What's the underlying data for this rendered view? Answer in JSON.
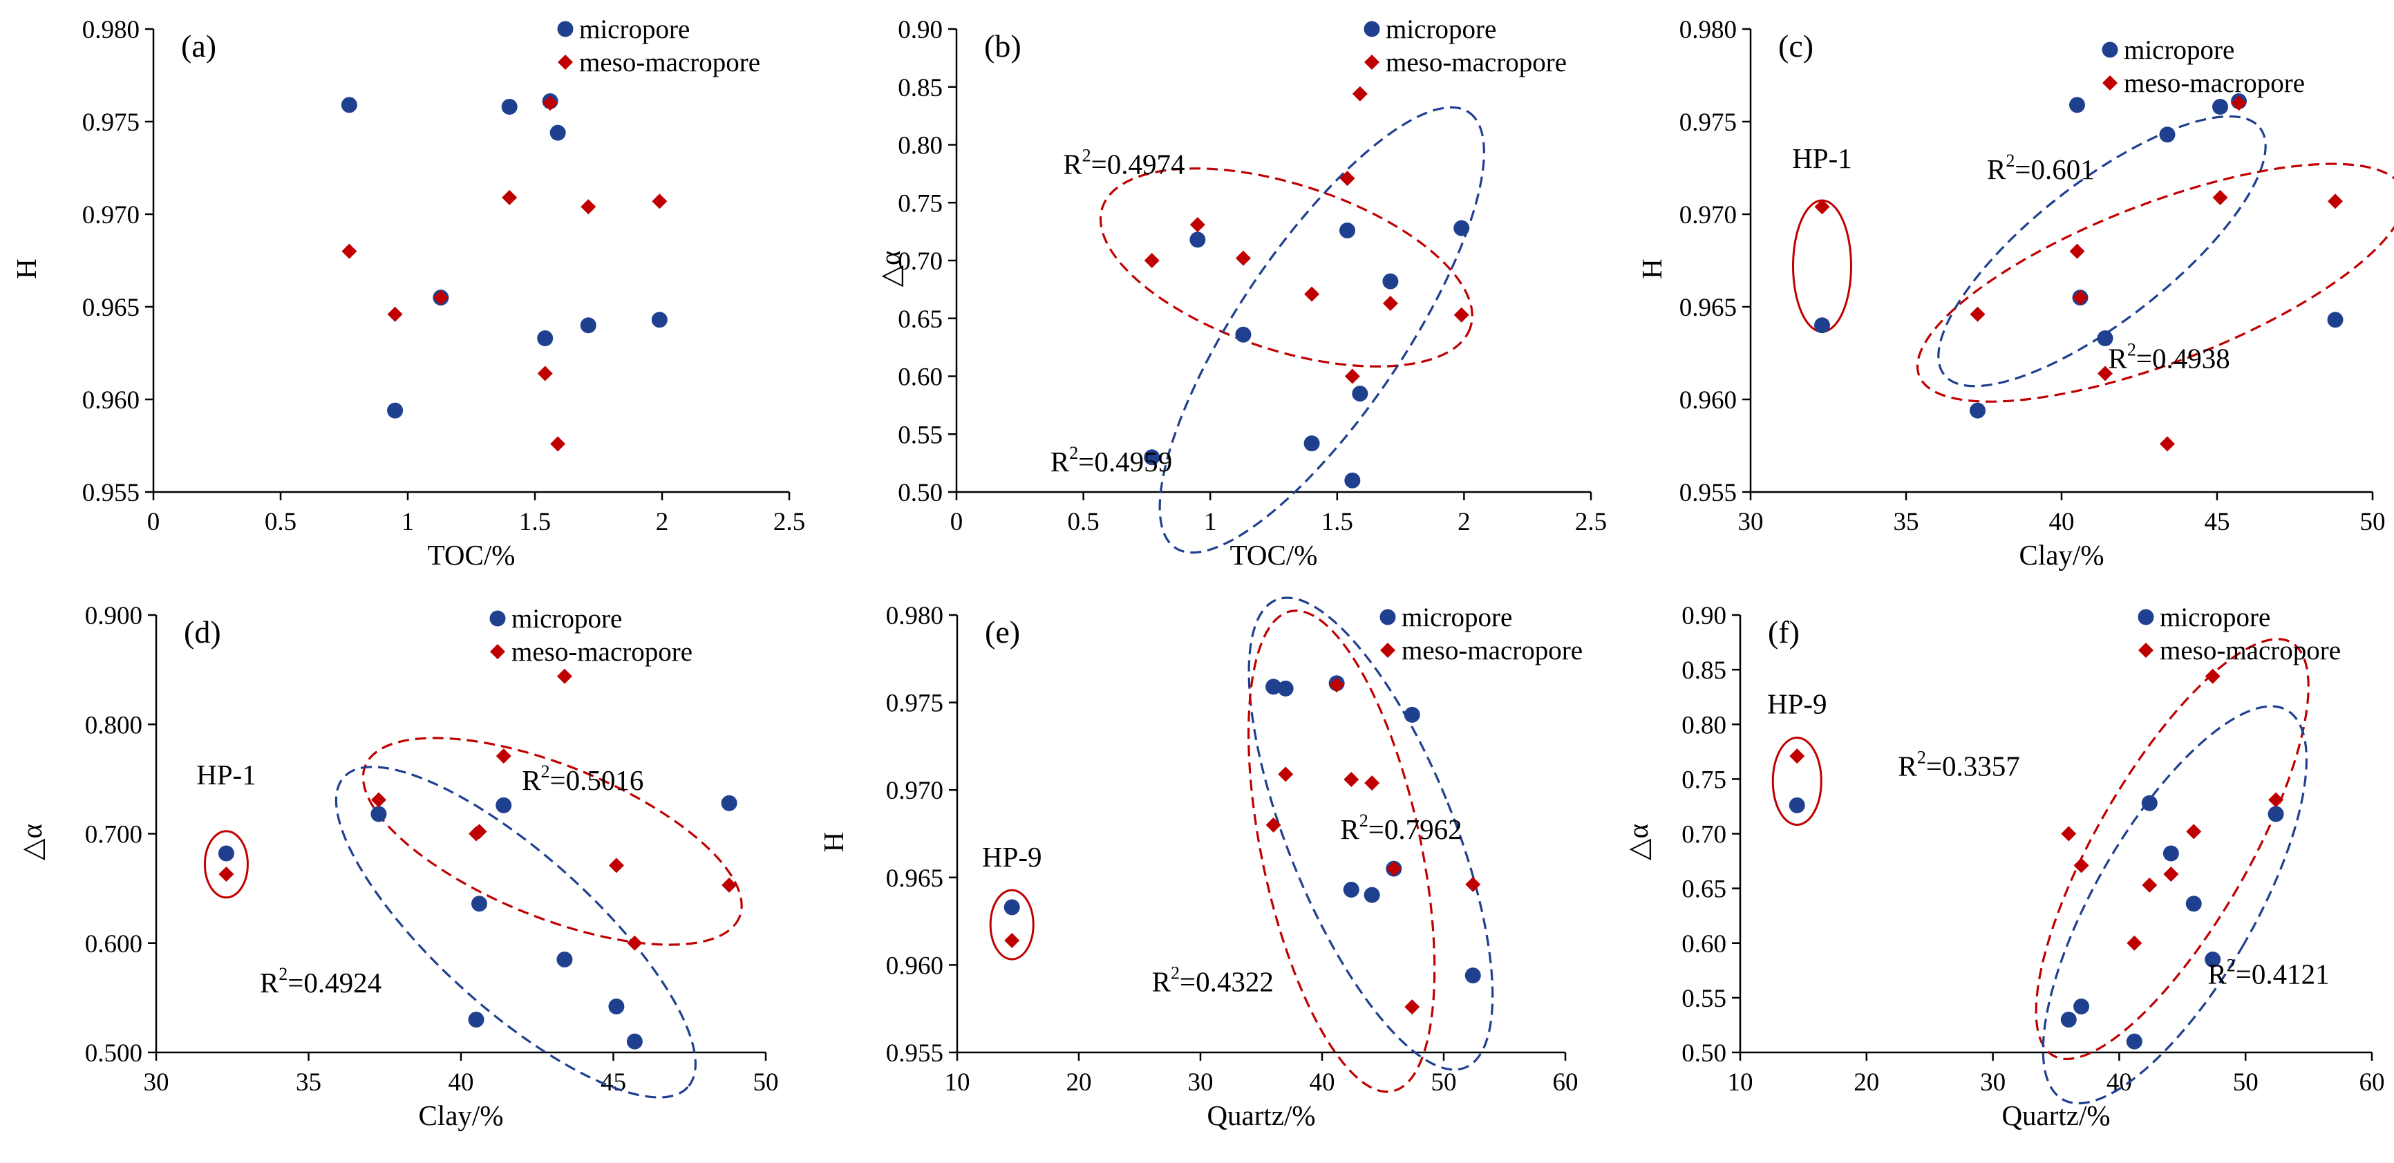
{
  "colors": {
    "micropore": "#1f3f8f",
    "mesomacropore": "#c00000",
    "axis": "#000000"
  },
  "chart_data": [
    {
      "id": "a",
      "type": "scatter",
      "panel_label": "(a)",
      "xlabel": "TOC/%",
      "ylabel": "H",
      "xlim": [
        0,
        2.5
      ],
      "ylim": [
        0.955,
        0.98
      ],
      "xticks": [
        0,
        0.5,
        1,
        1.5,
        2,
        2.5
      ],
      "yticks": [
        0.955,
        0.96,
        0.965,
        0.97,
        0.975,
        0.98
      ],
      "xtick_labels": [
        "0",
        "0.5",
        "1",
        "1.5",
        "2",
        "2.5"
      ],
      "ytick_labels": [
        "0.955",
        "0.960",
        "0.965",
        "0.970",
        "0.975",
        "0.980"
      ],
      "series": [
        {
          "name": "micropore",
          "marker": "circle",
          "points": [
            [
              0.77,
              0.9759
            ],
            [
              0.95,
              0.9594
            ],
            [
              1.13,
              0.9655
            ],
            [
              1.4,
              0.9758
            ],
            [
              1.54,
              0.9633
            ],
            [
              1.56,
              0.9761
            ],
            [
              1.59,
              0.9744
            ],
            [
              1.71,
              0.964
            ],
            [
              1.99,
              0.9643
            ]
          ]
        },
        {
          "name": "meso-macropore",
          "marker": "diamond",
          "points": [
            [
              0.77,
              0.968
            ],
            [
              0.95,
              0.9646
            ],
            [
              1.13,
              0.9655
            ],
            [
              1.4,
              0.9709
            ],
            [
              1.54,
              0.9614
            ],
            [
              1.56,
              0.976
            ],
            [
              1.59,
              0.9576
            ],
            [
              1.71,
              0.9704
            ],
            [
              1.99,
              0.9707
            ]
          ]
        }
      ],
      "legend_position": "top-right",
      "annotations": [],
      "callouts": []
    },
    {
      "id": "b",
      "type": "scatter",
      "panel_label": "(b)",
      "xlabel": "TOC/%",
      "ylabel": "△α",
      "xlim": [
        0,
        2.5
      ],
      "ylim": [
        0.5,
        0.9
      ],
      "xticks": [
        0,
        0.5,
        1,
        1.5,
        2,
        2.5
      ],
      "yticks": [
        0.5,
        0.55,
        0.6,
        0.65,
        0.7,
        0.75,
        0.8,
        0.85,
        0.9
      ],
      "xtick_labels": [
        "0",
        "0.5",
        "1",
        "1.5",
        "2",
        "2.5"
      ],
      "ytick_labels": [
        "0.50",
        "0.55",
        "0.60",
        "0.65",
        "0.70",
        "0.75",
        "0.80",
        "0.85",
        "0.90"
      ],
      "series": [
        {
          "name": "micropore",
          "marker": "circle",
          "points": [
            [
              0.95,
              0.718
            ],
            [
              1.13,
              0.636
            ],
            [
              1.4,
              0.542
            ],
            [
              1.54,
              0.726
            ],
            [
              1.56,
              0.51
            ],
            [
              1.59,
              0.585
            ],
            [
              1.71,
              0.682
            ],
            [
              1.99,
              0.728
            ],
            [
              0.77,
              0.53
            ]
          ]
        },
        {
          "name": "meso-macropore",
          "marker": "diamond",
          "points": [
            [
              0.77,
              0.7
            ],
            [
              0.95,
              0.731
            ],
            [
              1.13,
              0.702
            ],
            [
              1.4,
              0.671
            ],
            [
              1.54,
              0.771
            ],
            [
              1.56,
              0.6
            ],
            [
              1.59,
              0.844
            ],
            [
              1.71,
              0.663
            ],
            [
              1.99,
              0.653
            ]
          ]
        }
      ],
      "legend_position": "top-right",
      "annotations": [
        {
          "text": "=0.4974",
          "prefix": "R",
          "sup": "2",
          "x": 0.42,
          "y": 0.775
        },
        {
          "text": "=0.4959",
          "prefix": "R",
          "sup": "2",
          "x": 0.37,
          "y": 0.518
        }
      ],
      "callouts": []
    },
    {
      "id": "c",
      "type": "scatter",
      "panel_label": "(c)",
      "xlabel": "Clay/%",
      "ylabel": "H",
      "xlim": [
        30,
        50
      ],
      "ylim": [
        0.955,
        0.98
      ],
      "xticks": [
        30,
        35,
        40,
        45,
        50
      ],
      "yticks": [
        0.955,
        0.96,
        0.965,
        0.97,
        0.975,
        0.98
      ],
      "xtick_labels": [
        "30",
        "35",
        "40",
        "45",
        "50"
      ],
      "ytick_labels": [
        "0.955",
        "0.960",
        "0.965",
        "0.970",
        "0.975",
        "0.980"
      ],
      "series": [
        {
          "name": "micropore",
          "marker": "circle",
          "points": [
            [
              32.3,
              0.964
            ],
            [
              37.3,
              0.9594
            ],
            [
              40.5,
              0.9759
            ],
            [
              40.6,
              0.9655
            ],
            [
              41.4,
              0.9633
            ],
            [
              43.4,
              0.9743
            ],
            [
              45.1,
              0.9758
            ],
            [
              45.7,
              0.9761
            ],
            [
              48.8,
              0.9643
            ]
          ]
        },
        {
          "name": "meso-macropore",
          "marker": "diamond",
          "points": [
            [
              32.3,
              0.9704
            ],
            [
              37.3,
              0.9646
            ],
            [
              40.5,
              0.968
            ],
            [
              40.6,
              0.9655
            ],
            [
              41.4,
              0.9614
            ],
            [
              43.4,
              0.9576
            ],
            [
              45.1,
              0.9709
            ],
            [
              45.7,
              0.976
            ],
            [
              48.8,
              0.9707
            ]
          ]
        }
      ],
      "legend_position": "top-right",
      "annotations": [
        {
          "text": "=0.601",
          "prefix": "R",
          "sup": "2",
          "x": 37.6,
          "y": 0.9719
        },
        {
          "text": "=0.4938",
          "prefix": "R",
          "sup": "2",
          "x": 41.5,
          "y": 0.9617
        }
      ],
      "callouts": [
        {
          "text": "HP-1",
          "x": 32.3,
          "y": 0.9722
        }
      ]
    },
    {
      "id": "d",
      "type": "scatter",
      "panel_label": "(d)",
      "xlabel": "Clay/%",
      "ylabel": "△α",
      "xlim": [
        30,
        50
      ],
      "ylim": [
        0.5,
        0.9
      ],
      "xticks": [
        30,
        35,
        40,
        45,
        50
      ],
      "yticks": [
        0.5,
        0.6,
        0.7,
        0.8,
        0.9
      ],
      "xtick_labels": [
        "30",
        "35",
        "40",
        "45",
        "50"
      ],
      "ytick_labels": [
        "0.500",
        "0.600",
        "0.700",
        "0.800",
        "0.900"
      ],
      "series": [
        {
          "name": "micropore",
          "marker": "circle",
          "points": [
            [
              32.3,
              0.682
            ],
            [
              37.3,
              0.718
            ],
            [
              40.5,
              0.53
            ],
            [
              40.6,
              0.636
            ],
            [
              41.4,
              0.726
            ],
            [
              43.4,
              0.585
            ],
            [
              45.1,
              0.542
            ],
            [
              45.7,
              0.51
            ],
            [
              48.8,
              0.728
            ]
          ]
        },
        {
          "name": "meso-macropore",
          "marker": "diamond",
          "points": [
            [
              32.3,
              0.663
            ],
            [
              37.3,
              0.731
            ],
            [
              40.5,
              0.7
            ],
            [
              40.6,
              0.702
            ],
            [
              41.4,
              0.771
            ],
            [
              43.4,
              0.844
            ],
            [
              45.1,
              0.671
            ],
            [
              45.7,
              0.6
            ],
            [
              48.8,
              0.653
            ]
          ]
        }
      ],
      "legend_position": "top-right",
      "annotations": [
        {
          "text": "=0.5016",
          "prefix": "R",
          "sup": "2",
          "x": 42.0,
          "y": 0.74
        },
        {
          "text": "=0.4924",
          "prefix": "R",
          "sup": "2",
          "x": 33.4,
          "y": 0.555
        }
      ],
      "callouts": [
        {
          "text": "HP-1",
          "x": 32.3,
          "y": 0.74
        }
      ]
    },
    {
      "id": "e",
      "type": "scatter",
      "panel_label": "(e)",
      "xlabel": "Quartz/%",
      "ylabel": "H",
      "xlim": [
        10,
        60
      ],
      "ylim": [
        0.955,
        0.98
      ],
      "xticks": [
        10,
        20,
        30,
        40,
        50,
        60
      ],
      "yticks": [
        0.955,
        0.96,
        0.965,
        0.97,
        0.975,
        0.98
      ],
      "xtick_labels": [
        "10",
        "20",
        "30",
        "40",
        "50",
        "60"
      ],
      "ytick_labels": [
        "0.955",
        "0.960",
        "0.965",
        "0.970",
        "0.975",
        "0.980"
      ],
      "series": [
        {
          "name": "micropore",
          "marker": "circle",
          "points": [
            [
              14.5,
              0.9633
            ],
            [
              36.0,
              0.9759
            ],
            [
              37.0,
              0.9758
            ],
            [
              41.2,
              0.9761
            ],
            [
              42.4,
              0.9643
            ],
            [
              44.1,
              0.964
            ],
            [
              45.9,
              0.9655
            ],
            [
              47.4,
              0.9743
            ],
            [
              52.4,
              0.9594
            ]
          ]
        },
        {
          "name": "meso-macropore",
          "marker": "diamond",
          "points": [
            [
              14.5,
              0.9614
            ],
            [
              36.0,
              0.968
            ],
            [
              37.0,
              0.9709
            ],
            [
              41.2,
              0.976
            ],
            [
              42.4,
              0.9706
            ],
            [
              44.1,
              0.9704
            ],
            [
              45.9,
              0.9655
            ],
            [
              47.4,
              0.9576
            ],
            [
              52.4,
              0.9646
            ]
          ]
        }
      ],
      "legend_position": "top-right",
      "annotations": [
        {
          "text": "=0.7962",
          "prefix": "R",
          "sup": "2",
          "x": 41.5,
          "y": 0.9672
        },
        {
          "text": "=0.4322",
          "prefix": "R",
          "sup": "2",
          "x": 26.0,
          "y": 0.9585
        }
      ],
      "callouts": [
        {
          "text": "HP-9",
          "x": 14.5,
          "y": 0.9653
        }
      ]
    },
    {
      "id": "f",
      "type": "scatter",
      "panel_label": "(f)",
      "xlabel": "Quartz/%",
      "ylabel": "△α",
      "xlim": [
        10,
        60
      ],
      "ylim": [
        0.5,
        0.9
      ],
      "xticks": [
        10,
        20,
        30,
        40,
        50,
        60
      ],
      "yticks": [
        0.5,
        0.55,
        0.6,
        0.65,
        0.7,
        0.75,
        0.8,
        0.85,
        0.9
      ],
      "xtick_labels": [
        "10",
        "20",
        "30",
        "40",
        "50",
        "60"
      ],
      "ytick_labels": [
        "0.50",
        "0.55",
        "0.60",
        "0.65",
        "0.70",
        "0.75",
        "0.80",
        "0.85",
        "0.90"
      ],
      "series": [
        {
          "name": "micropore",
          "marker": "circle",
          "points": [
            [
              14.5,
              0.726
            ],
            [
              36.0,
              0.53
            ],
            [
              37.0,
              0.542
            ],
            [
              41.2,
              0.51
            ],
            [
              42.4,
              0.728
            ],
            [
              44.1,
              0.682
            ],
            [
              45.9,
              0.636
            ],
            [
              47.4,
              0.585
            ],
            [
              52.4,
              0.718
            ]
          ]
        },
        {
          "name": "meso-macropore",
          "marker": "diamond",
          "points": [
            [
              14.5,
              0.771
            ],
            [
              36.0,
              0.7
            ],
            [
              37.0,
              0.671
            ],
            [
              41.2,
              0.6
            ],
            [
              42.4,
              0.653
            ],
            [
              44.1,
              0.663
            ],
            [
              45.9,
              0.702
            ],
            [
              47.4,
              0.844
            ],
            [
              52.4,
              0.731
            ]
          ]
        }
      ],
      "legend_position": "top-right",
      "annotations": [
        {
          "text": "=0.3357",
          "prefix": "R",
          "sup": "2",
          "x": 22.5,
          "y": 0.753
        },
        {
          "text": "=0.4121",
          "prefix": "R",
          "sup": "2",
          "x": 47.0,
          "y": 0.563
        }
      ],
      "callouts": [
        {
          "text": "HP-9",
          "x": 14.5,
          "y": 0.805
        }
      ]
    }
  ]
}
